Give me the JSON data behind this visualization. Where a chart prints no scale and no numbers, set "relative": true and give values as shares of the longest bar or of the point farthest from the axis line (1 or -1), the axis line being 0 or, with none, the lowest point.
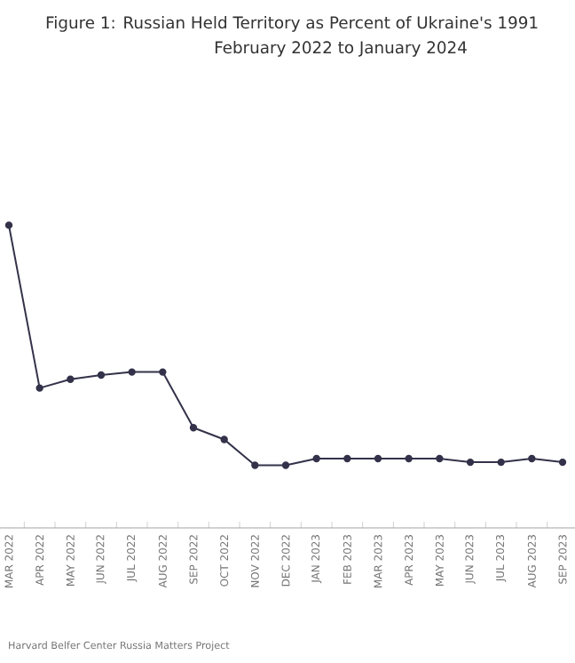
{
  "chart_data": {
    "type": "line",
    "title": "Figure 1: Russian Held Territory as Percent of Ukraine's 1991",
    "subtitle": "February 2022 to January 2024",
    "categories": [
      "MAR 2022",
      "APR 2022",
      "MAY 2022",
      "JUN 2022",
      "JUL 2022",
      "AUG 2022",
      "SEP 2022",
      "OCT 2022",
      "NOV 2022",
      "DEC 2022",
      "JAN 2023",
      "FEB 2023",
      "MAR 2023",
      "APR 2023",
      "MAY 2023",
      "JUN 2023",
      "JUL 2023",
      "AUG 2023",
      "SEP 2023"
    ],
    "values": [
      1,
      0.462,
      0.491,
      0.505,
      0.515,
      0.515,
      0.331,
      0.292,
      0.207,
      0.207,
      0.229,
      0.229,
      0.229,
      0.229,
      0.229,
      0.217,
      0.217,
      0.229,
      0.217
    ],
    "color": "#33324a",
    "relative": true,
    "marker": "circle",
    "line_style": "solid",
    "annotations": [
      "Harvard Belfer Center Russia Matters Project"
    ]
  }
}
